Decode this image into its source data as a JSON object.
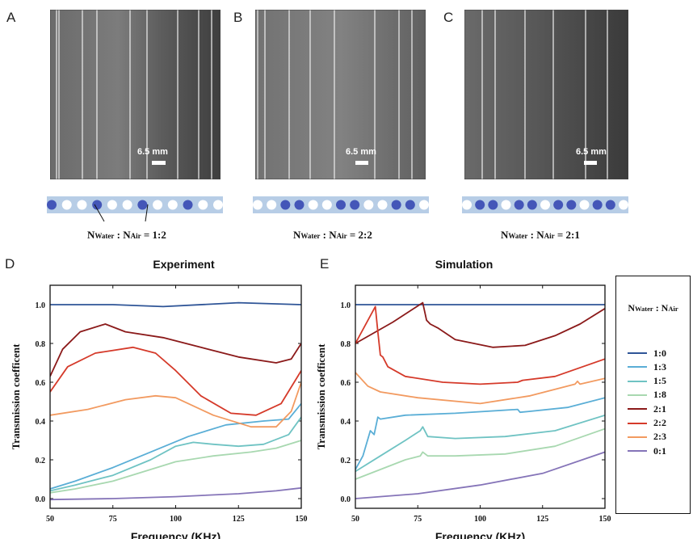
{
  "panels": {
    "photos": [
      {
        "letter": "A",
        "scale_label": "6.5 mm",
        "ratio_n": "N",
        "ratio_water": "Water",
        "ratio_sep": " : N",
        "ratio_air": "Air",
        "ratio_value": " = 1:2",
        "tubes": [
          "water",
          "air",
          "air",
          "water",
          "air",
          "air",
          "water",
          "air",
          "air",
          "water",
          "air",
          "air"
        ]
      },
      {
        "letter": "B",
        "scale_label": "6.5 mm",
        "ratio_n": "N",
        "ratio_water": "Water",
        "ratio_sep": " : N",
        "ratio_air": "Air",
        "ratio_value": " = 2:2",
        "tubes": [
          "air",
          "air",
          "water",
          "water",
          "air",
          "air",
          "water",
          "water",
          "air",
          "air",
          "water",
          "water",
          "air"
        ]
      },
      {
        "letter": "C",
        "scale_label": "6.5 mm",
        "ratio_n": "N",
        "ratio_water": "Water",
        "ratio_sep": " : N",
        "ratio_air": "Air",
        "ratio_value": " = 2:1",
        "tubes": [
          "air",
          "water",
          "water",
          "air",
          "water",
          "water",
          "air",
          "water",
          "water",
          "air",
          "water",
          "water",
          "air"
        ]
      }
    ],
    "colors": {
      "tube_strip": "#b7cde6",
      "water": "#4456b8",
      "air": "#ffffff"
    }
  },
  "legend": {
    "title_n1": "N",
    "title_sub1": "Water",
    "title_mid": " : N",
    "title_sub2": "Air",
    "entries": [
      {
        "label": "1:0",
        "color": "#2f5597"
      },
      {
        "label": "1:3",
        "color": "#5aaed6"
      },
      {
        "label": "1:5",
        "color": "#6fc3c3"
      },
      {
        "label": "1:8",
        "color": "#a8d8b0"
      },
      {
        "label": "2:1",
        "color": "#8b1a1a"
      },
      {
        "label": "2:2",
        "color": "#d53a2a"
      },
      {
        "label": "2:3",
        "color": "#f29a60"
      },
      {
        "label": "0:1",
        "color": "#8574b8"
      }
    ]
  },
  "chart_data": [
    {
      "type": "line",
      "letter": "D",
      "title": "Experiment",
      "xlabel": "Frequency (KHz)",
      "ylabel": "Transmission coefficent",
      "xlim": [
        50,
        150
      ],
      "ylim": [
        -0.05,
        1.1
      ],
      "xticks": [
        "50",
        "75",
        "100",
        "125",
        "150"
      ],
      "yticks": [
        "0.0",
        "0.2",
        "0.4",
        "0.6",
        "0.8",
        "1.0"
      ],
      "series": [
        {
          "name": "1:0",
          "x": [
            50,
            75,
            95,
            125,
            150
          ],
          "y": [
            1.0,
            1.0,
            0.99,
            1.01,
            1.0
          ]
        },
        {
          "name": "1:3",
          "x": [
            50,
            60,
            75,
            90,
            105,
            120,
            135,
            145,
            150
          ],
          "y": [
            0.05,
            0.09,
            0.16,
            0.24,
            0.32,
            0.38,
            0.4,
            0.41,
            0.49
          ]
        },
        {
          "name": "1:5",
          "x": [
            50,
            60,
            75,
            90,
            100,
            107,
            115,
            125,
            135,
            145,
            150
          ],
          "y": [
            0.04,
            0.07,
            0.12,
            0.2,
            0.27,
            0.29,
            0.28,
            0.27,
            0.28,
            0.33,
            0.42
          ]
        },
        {
          "name": "1:8",
          "x": [
            50,
            60,
            75,
            90,
            100,
            115,
            130,
            140,
            150
          ],
          "y": [
            0.03,
            0.05,
            0.09,
            0.15,
            0.19,
            0.22,
            0.24,
            0.26,
            0.3
          ]
        },
        {
          "name": "2:1",
          "x": [
            50,
            55,
            62,
            72,
            80,
            95,
            110,
            125,
            140,
            146,
            150
          ],
          "y": [
            0.63,
            0.77,
            0.86,
            0.9,
            0.86,
            0.83,
            0.78,
            0.73,
            0.7,
            0.72,
            0.8
          ]
        },
        {
          "name": "2:2",
          "x": [
            50,
            57,
            68,
            83,
            92,
            100,
            110,
            122,
            132,
            142,
            150
          ],
          "y": [
            0.55,
            0.68,
            0.75,
            0.78,
            0.75,
            0.66,
            0.53,
            0.44,
            0.43,
            0.49,
            0.66
          ]
        },
        {
          "name": "2:3",
          "x": [
            50,
            65,
            80,
            92,
            100,
            115,
            130,
            140,
            146,
            150
          ],
          "y": [
            0.43,
            0.46,
            0.51,
            0.53,
            0.52,
            0.43,
            0.37,
            0.37,
            0.45,
            0.6
          ]
        },
        {
          "name": "0:1",
          "x": [
            50,
            75,
            100,
            125,
            140,
            150
          ],
          "y": [
            -0.005,
            0.0,
            0.01,
            0.025,
            0.04,
            0.055
          ]
        }
      ]
    },
    {
      "type": "line",
      "letter": "E",
      "title": "Simulation",
      "xlabel": "Frequency (KHz)",
      "ylabel": "Transmission coefficent",
      "xlim": [
        50,
        150
      ],
      "ylim": [
        -0.05,
        1.1
      ],
      "xticks": [
        "50",
        "75",
        "100",
        "125",
        "150"
      ],
      "yticks": [
        "0.0",
        "0.2",
        "0.4",
        "0.6",
        "0.8",
        "1.0"
      ],
      "series": [
        {
          "name": "1:0",
          "x": [
            50,
            150
          ],
          "y": [
            1.0,
            1.0
          ]
        },
        {
          "name": "1:3",
          "x": [
            50,
            53,
            56,
            57.5,
            59,
            60,
            70,
            90,
            115,
            116,
            120,
            135,
            150
          ],
          "y": [
            0.15,
            0.22,
            0.35,
            0.33,
            0.42,
            0.41,
            0.43,
            0.44,
            0.46,
            0.445,
            0.45,
            0.47,
            0.52
          ]
        },
        {
          "name": "1:5",
          "x": [
            50,
            60,
            70,
            76,
            77,
            79,
            90,
            110,
            130,
            150
          ],
          "y": [
            0.14,
            0.22,
            0.3,
            0.35,
            0.37,
            0.32,
            0.31,
            0.32,
            0.35,
            0.43
          ]
        },
        {
          "name": "1:8",
          "x": [
            50,
            60,
            70,
            76,
            77,
            79,
            90,
            110,
            130,
            150
          ],
          "y": [
            0.1,
            0.15,
            0.2,
            0.22,
            0.24,
            0.22,
            0.22,
            0.23,
            0.27,
            0.36
          ]
        },
        {
          "name": "2:1",
          "x": [
            50,
            65,
            77,
            78.5,
            80,
            83,
            90,
            105,
            118,
            130,
            140,
            150
          ],
          "y": [
            0.8,
            0.91,
            1.01,
            0.92,
            0.9,
            0.88,
            0.82,
            0.78,
            0.79,
            0.84,
            0.9,
            0.98
          ]
        },
        {
          "name": "2:2",
          "x": [
            50,
            58,
            59,
            60,
            61,
            63,
            70,
            85,
            100,
            115,
            117,
            130,
            150
          ],
          "y": [
            0.8,
            0.99,
            0.86,
            0.74,
            0.73,
            0.68,
            0.63,
            0.6,
            0.59,
            0.6,
            0.61,
            0.63,
            0.72
          ]
        },
        {
          "name": "2:3",
          "x": [
            50,
            55,
            60,
            75,
            100,
            120,
            138,
            139,
            140,
            150
          ],
          "y": [
            0.65,
            0.58,
            0.55,
            0.52,
            0.49,
            0.53,
            0.59,
            0.605,
            0.59,
            0.62
          ]
        },
        {
          "name": "0:1",
          "x": [
            50,
            75,
            100,
            125,
            150
          ],
          "y": [
            0.0,
            0.025,
            0.07,
            0.13,
            0.24
          ]
        }
      ]
    }
  ]
}
